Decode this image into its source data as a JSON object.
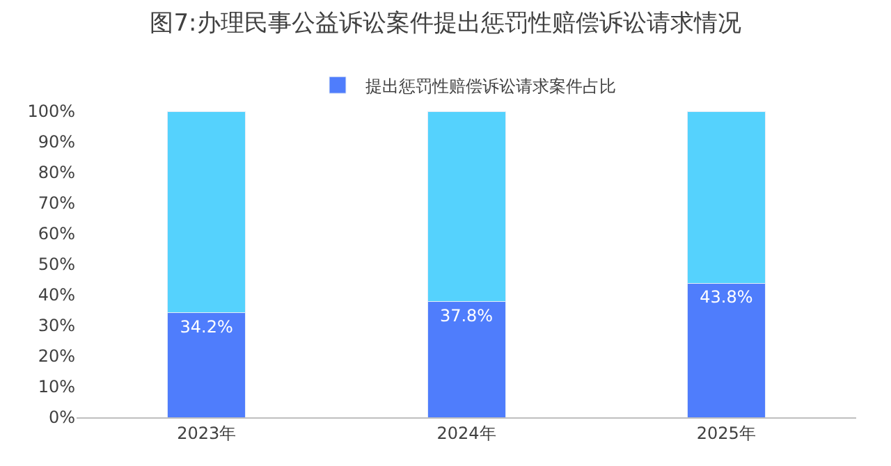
{
  "chart_data": {
    "type": "bar",
    "title": "图7:办理民事公益诉讼案件提出惩罚性赔偿诉讼请求情况",
    "categories": [
      "2023年",
      "2024年",
      "2025年"
    ],
    "stacked": true,
    "legend": "top",
    "grid": false,
    "series": [
      {
        "name": "提出惩罚性赔偿诉讼请求案件占比",
        "color": "#4f7dfc",
        "values": [
          34.2,
          37.8,
          43.8
        ],
        "value_labels": [
          "34.2%",
          "37.8%",
          "43.8%"
        ]
      },
      {
        "color": "#55d2fd",
        "values": [
          65.8,
          62.2,
          56.2
        ]
      }
    ],
    "ylim": [
      0,
      100
    ],
    "yticks": [
      {
        "value": 0,
        "label": "0%"
      },
      {
        "value": 10,
        "label": "10%"
      },
      {
        "value": 20,
        "label": "20%"
      },
      {
        "value": 30,
        "label": "30%"
      },
      {
        "value": 40,
        "label": "40%"
      },
      {
        "value": 50,
        "label": "50%"
      },
      {
        "value": 60,
        "label": "60%"
      },
      {
        "value": 70,
        "label": "70%"
      },
      {
        "value": 80,
        "label": "80%"
      },
      {
        "value": 90,
        "label": "90%"
      },
      {
        "value": 100,
        "label": "100%"
      }
    ]
  }
}
